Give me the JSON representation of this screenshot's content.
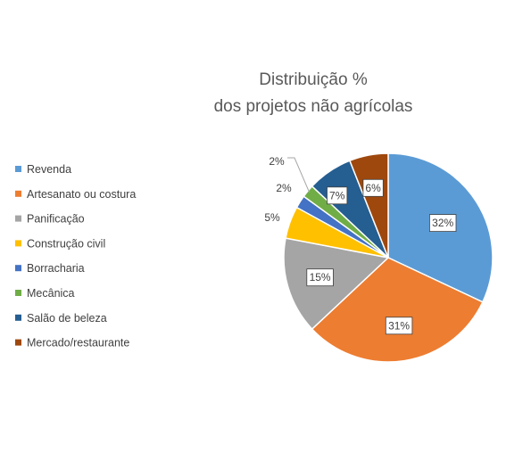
{
  "chart_data": {
    "type": "pie",
    "title_lines": [
      "Distribuição %",
      "dos projetos não agrícolas"
    ],
    "categories": [
      "Revenda",
      "Artesanato ou costura",
      "Panificação",
      "Construção civil",
      "Borracharia",
      "Mecânica",
      "Salão de beleza",
      "Mercado/restaurante"
    ],
    "values": [
      32,
      31,
      15,
      5,
      2,
      2,
      7,
      6
    ],
    "labels": [
      "32%",
      "31%",
      "15%",
      "5%",
      "2%",
      "2%",
      "7%",
      "6%"
    ],
    "colors": [
      "#5b9bd5",
      "#ed7d31",
      "#a5a5a5",
      "#ffc000",
      "#4472c4",
      "#70ad47",
      "#255e91",
      "#9e480e"
    ],
    "legend_position": "left",
    "start_angle": "12 o'clock",
    "direction": "clockwise"
  }
}
